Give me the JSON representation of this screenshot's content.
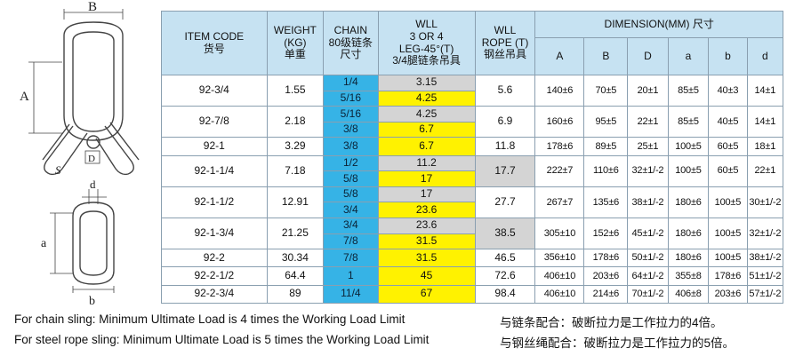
{
  "diagram": {
    "labels": {
      "B": "B",
      "A": "A",
      "D": "D",
      "S": "S",
      "d": "d",
      "a": "a",
      "b": "b"
    }
  },
  "table": {
    "headers": {
      "item_code": [
        "ITEM CODE",
        "货号"
      ],
      "weight": [
        "WEIGHT",
        "(KG)",
        "单重"
      ],
      "chain": [
        "CHAIN",
        "80级链条",
        "尺寸"
      ],
      "wll": [
        "WLL",
        "3 OR 4",
        "LEG-45°(T)",
        "3/4腿链条吊具"
      ],
      "wll_rope": [
        "WLL",
        "ROPE (T)",
        "钢丝吊具"
      ],
      "dimension": "DIMENSION(MM) 尺寸",
      "dims": [
        "A",
        "B",
        "D",
        "a",
        "b",
        "d"
      ]
    },
    "rows": [
      {
        "code": "92-3/4",
        "weight": "1.55",
        "chain": [
          "1/4",
          "5/16"
        ],
        "wll": [
          "3.15",
          "4.25"
        ],
        "rope": "5.6",
        "dims": [
          "140±6",
          "70±5",
          "20±1",
          "85±5",
          "40±3",
          "14±1"
        ]
      },
      {
        "code": "92-7/8",
        "weight": "2.18",
        "chain": [
          "5/16",
          "3/8"
        ],
        "wll": [
          "4.25",
          "6.7"
        ],
        "rope": "6.9",
        "dims": [
          "160±6",
          "95±5",
          "22±1",
          "85±5",
          "40±5",
          "14±1"
        ]
      },
      {
        "code": "92-1",
        "weight": "3.29",
        "chain": [
          "3/8"
        ],
        "wll": [
          "6.7"
        ],
        "rope": "11.8",
        "dims": [
          "178±6",
          "89±5",
          "25±1",
          "100±5",
          "60±5",
          "18±1"
        ]
      },
      {
        "code": "92-1-1/4",
        "weight": "7.18",
        "chain": [
          "1/2",
          "5/8"
        ],
        "wll": [
          "11.2",
          "17"
        ],
        "rope": "17.7",
        "dims": [
          "222±7",
          "110±6",
          "32±1/-2",
          "100±5",
          "60±5",
          "22±1"
        ]
      },
      {
        "code": "92-1-1/2",
        "weight": "12.91",
        "chain": [
          "5/8",
          "3/4"
        ],
        "wll": [
          "17",
          "23.6"
        ],
        "rope": "27.7",
        "dims": [
          "267±7",
          "135±6",
          "38±1/-2",
          "180±6",
          "100±5",
          "30±1/-2"
        ]
      },
      {
        "code": "92-1-3/4",
        "weight": "21.25",
        "chain": [
          "3/4",
          "7/8"
        ],
        "wll": [
          "23.6",
          "31.5"
        ],
        "rope": "38.5",
        "dims": [
          "305±10",
          "152±6",
          "45±1/-2",
          "180±6",
          "100±5",
          "32±1/-2"
        ]
      },
      {
        "code": "92-2",
        "weight": "30.34",
        "chain": [
          "7/8"
        ],
        "wll": [
          "31.5"
        ],
        "rope": "46.5",
        "dims": [
          "356±10",
          "178±6",
          "50±1/-2",
          "180±6",
          "100±5",
          "38±1/-2"
        ]
      },
      {
        "code": "92-2-1/2",
        "weight": "64.4",
        "chain": [
          "1"
        ],
        "wll": [
          "45"
        ],
        "rope": "72.6",
        "dims": [
          "406±10",
          "203±6",
          "64±1/-2",
          "355±8",
          "178±6",
          "51±1/-2"
        ]
      },
      {
        "code": "92-2-3/4",
        "weight": "89",
        "chain": [
          "11/4"
        ],
        "wll": [
          "67"
        ],
        "rope": "98.4",
        "dims": [
          "406±10",
          "214±6",
          "70±1/-2",
          "406±8",
          "203±6",
          "57±1/-2"
        ]
      }
    ]
  },
  "footnotes": [
    {
      "en": "For chain sling: Minimum Ultimate Load is 4 times the Working Load Limit",
      "cn": "与链条配合：破断拉力是工作拉力的4倍。"
    },
    {
      "en": "For steel rope sling: Minimum Ultimate Load is 5 times the Working Load Limit",
      "cn": "与钢丝绳配合：破断拉力是工作拉力的5倍。"
    }
  ]
}
